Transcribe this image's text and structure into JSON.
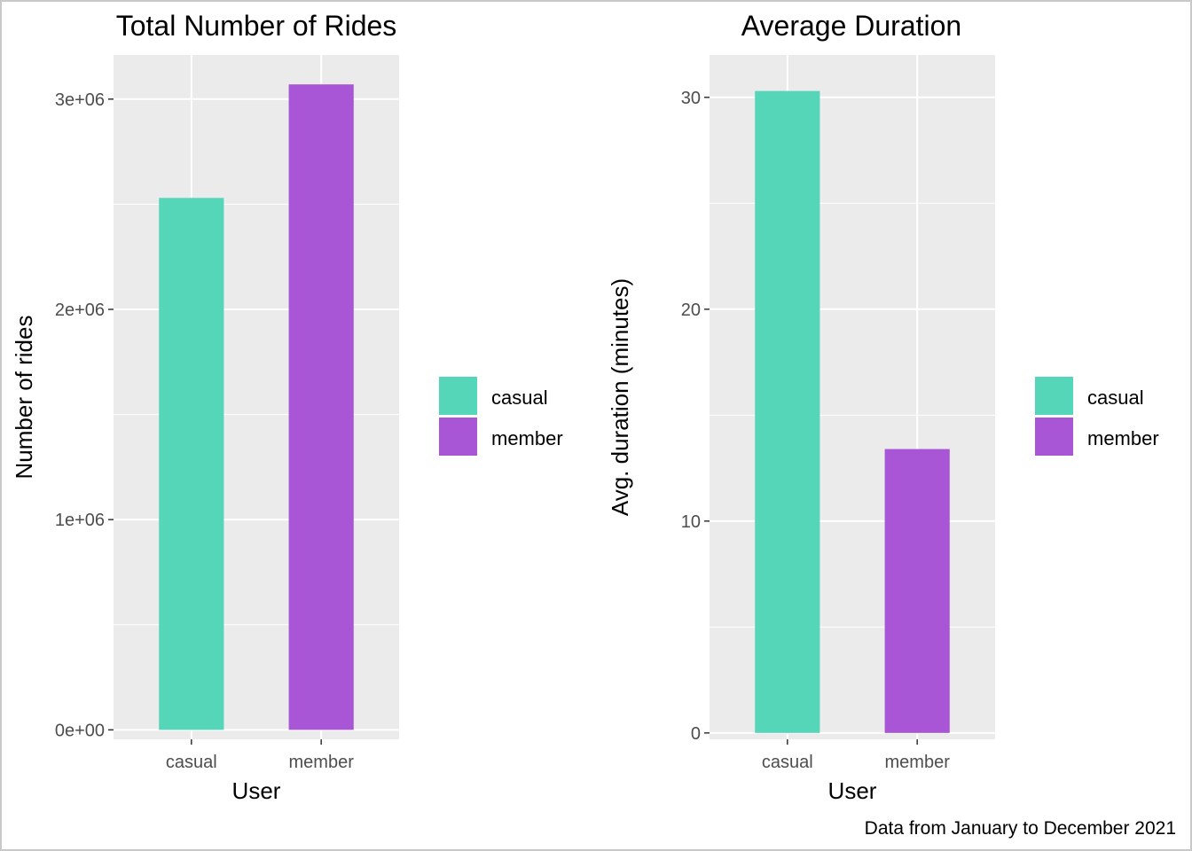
{
  "colors": {
    "casual": "#55d6b8",
    "member": "#a855d6",
    "panel": "#ebebeb",
    "grid": "#ffffff"
  },
  "caption": "Data from January to December 2021",
  "chart_data": [
    {
      "type": "bar",
      "title": "Total Number of Rides",
      "xlabel": "User",
      "ylabel": "Number of rides",
      "categories": [
        "casual",
        "member"
      ],
      "values": [
        2530000,
        3070000
      ],
      "ylim": [
        -45000,
        3210000
      ],
      "yticks": [
        0,
        1000000,
        2000000,
        3000000
      ],
      "ytick_labels": [
        "0e+00",
        "1e+06",
        "2e+06",
        "3e+06"
      ],
      "legend": {
        "position": "right",
        "entries": [
          "casual",
          "member"
        ]
      },
      "grid": true
    },
    {
      "type": "bar",
      "title": "Average Duration",
      "xlabel": "User",
      "ylabel": "Avg. duration (minutes)",
      "categories": [
        "casual",
        "member"
      ],
      "values": [
        30.3,
        13.4
      ],
      "ylim": [
        -0.3,
        32.0
      ],
      "yticks": [
        0,
        10,
        20,
        30
      ],
      "ytick_labels": [
        "0",
        "10",
        "20",
        "30"
      ],
      "legend": {
        "position": "right",
        "entries": [
          "casual",
          "member"
        ]
      },
      "grid": true
    }
  ]
}
